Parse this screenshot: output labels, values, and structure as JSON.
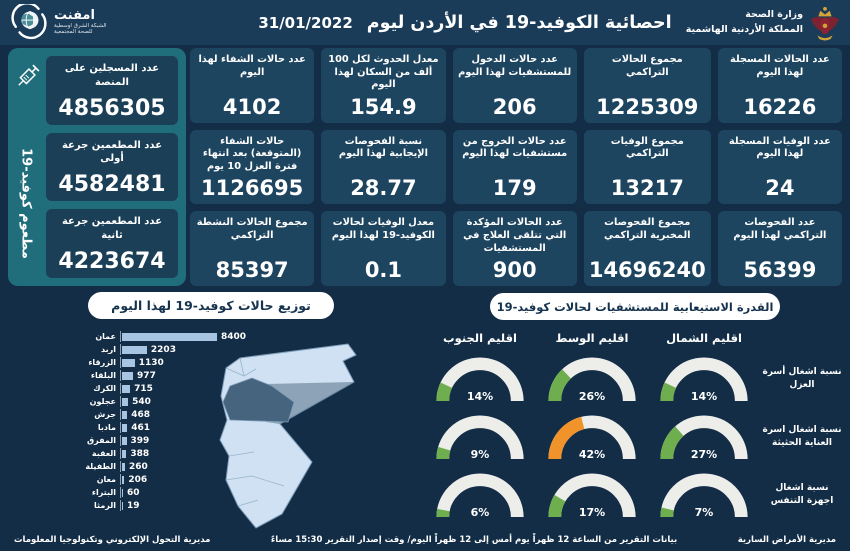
{
  "header": {
    "logo": {
      "name": "امفنت",
      "sub1": "الشبكة الشرق اوسطية",
      "sub2": "للصحة المجتمعية"
    },
    "title": "احصائية الكوفيد-19 في الأردن ليوم",
    "date": "31/01/2022",
    "ministry": {
      "line1": "وزارة الصحة",
      "line2": "المملكة الأردنية الهاشمية"
    }
  },
  "vaccination": {
    "vertical_label": "مطعوم كوفيد-19",
    "cards": [
      {
        "label": "عدد المسجلين على المنصة",
        "value": "4856305"
      },
      {
        "label": "عدد المطعمين جرعة أولى",
        "value": "4582481"
      },
      {
        "label": "عدد المطعمين جرعة ثانية",
        "value": "4223674"
      }
    ]
  },
  "stats": [
    {
      "label": "عدد الحالات المسجلة لهذا اليوم",
      "value": "16226"
    },
    {
      "label": "مجموع الحالات التراكمي",
      "value": "1225309"
    },
    {
      "label": "عدد حالات الدخول للمستشفيات لهذا اليوم",
      "value": "206"
    },
    {
      "label": "معدل الحدوث لكل 100 ألف من السكان لهذا اليوم",
      "value": "154.9"
    },
    {
      "label": "عدد حالات الشفاء لهذا اليوم",
      "value": "4102"
    },
    {
      "label": "عدد الوفيات المسجلة لهذا اليوم",
      "value": "24"
    },
    {
      "label": "مجموع الوفيات التراكمي",
      "value": "13217"
    },
    {
      "label": "عدد حالات الخروج من مستشفيات لهذا اليوم",
      "value": "179"
    },
    {
      "label": "نسبة الفحوصات الإيجابية لهذا اليوم",
      "value": "28.77"
    },
    {
      "label": "حالات الشفاء (المتوقعة) بعد انتهاء فترة العزل 10 يوم",
      "value": "1126695"
    },
    {
      "label": "عدد الفحوصات التراكمي لهذا اليوم",
      "value": "56399"
    },
    {
      "label": "مجموع الفحوصات المخبرية التراكمي",
      "value": "14696240"
    },
    {
      "label": "عدد الحالات المؤكدة التي تتلقى العلاج في المستشفيات",
      "value": "900"
    },
    {
      "label": "معدل الوفيات لحالات الكوفيد-19 لهذا اليوم",
      "value": "0.1"
    },
    {
      "label": "مجموع الحالات النشطة التراكمي",
      "value": "85397"
    }
  ],
  "chart_data": [
    {
      "type": "bar",
      "orientation": "horizontal",
      "title": "توزيع حالات كوفيد-19 لهذا اليوم",
      "categories": [
        "عمان",
        "اربد",
        "الزرقاء",
        "البلقاء",
        "الكرك",
        "عجلون",
        "جرش",
        "مادبا",
        "المفرق",
        "العقبة",
        "الطفيلة",
        "معان",
        "البتراء",
        "الرمثا"
      ],
      "values": [
        8400,
        2203,
        1130,
        977,
        715,
        540,
        468,
        461,
        399,
        388,
        260,
        206,
        60,
        19
      ],
      "xlim": [
        0,
        8400
      ],
      "bar_color": "#a7c4e2"
    },
    {
      "type": "gauge-grid",
      "title": "القدرة الاستيعابية للمستشفيات لحالات كوفيد-19",
      "columns": [
        "اقليم الشمال",
        "اقليم الوسط",
        "اقليم الجنوب"
      ],
      "rows": [
        {
          "label": "نسبة اشغال أسرة العزل",
          "values": [
            14,
            26,
            14
          ],
          "colors": [
            "green",
            "green",
            "green"
          ]
        },
        {
          "label": "نسبة اشغال اسرة العناية الحثيثة",
          "values": [
            27,
            42,
            9
          ],
          "colors": [
            "green",
            "orange",
            "green"
          ]
        },
        {
          "label": "نسبة اشغال اجهزة التنفس",
          "values": [
            7,
            17,
            6
          ],
          "colors": [
            "green",
            "green",
            "green"
          ]
        }
      ],
      "unit": "%"
    }
  ],
  "footer": {
    "right": "مديرية الأمراض السارية",
    "center": "بيانات التقرير من الساعة 12 ظهراً يوم أمس إلى 12 ظهراً اليوم/ وقت إصدار التقرير 15:30 مساءً",
    "left": "مديرية التحول الإلكتروني وتكنولوجيا المعلومات"
  },
  "colors": {
    "background": "#132d46",
    "header": "#1a3c59",
    "card": "#1e4560",
    "card_dark": "#1a3f57",
    "sidebar": "#206e7b",
    "bar": "#a7c4e2",
    "gauge_green": "#6fae4e",
    "gauge_orange": "#f0932a",
    "gauge_track": "#ededea",
    "map_fill": "#cfe1f2",
    "map_stroke": "#7d9cb8",
    "map_highlight": "#46647e"
  }
}
